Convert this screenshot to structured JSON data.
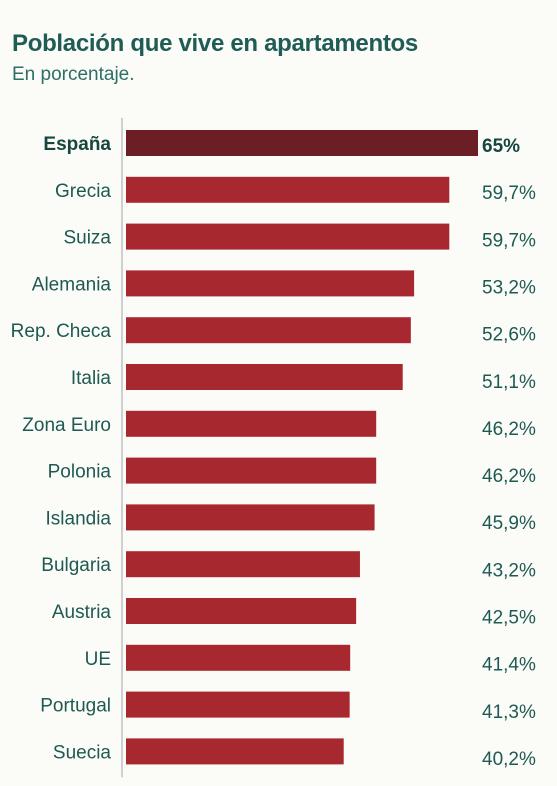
{
  "header": {
    "title": "Población que vive en apartamentos",
    "subtitle": "En porcentaje."
  },
  "colors": {
    "bar": "#a8282f",
    "highlight_bar": "#6b1f24",
    "text": "#1e5a52",
    "axis": "#cfcfcf"
  },
  "chart_data": {
    "type": "bar",
    "orientation": "horizontal",
    "title": "Población que vive en apartamentos",
    "subtitle": "En porcentaje.",
    "categories": [
      "España",
      "Grecia",
      "Suiza",
      "Alemania",
      "Rep. Checa",
      "Italia",
      "Zona Euro",
      "Polonia",
      "Islandia",
      "Bulgaria",
      "Austria",
      "UE",
      "Portugal",
      "Suecia"
    ],
    "values": [
      65,
      59.7,
      59.7,
      53.2,
      52.6,
      51.1,
      46.2,
      46.2,
      45.9,
      43.2,
      42.5,
      41.4,
      41.3,
      40.2
    ],
    "value_labels": [
      "65%",
      "59,7%",
      "59,7%",
      "53,2%",
      "52,6%",
      "51,1%",
      "46,2%",
      "46,2%",
      "45,9%",
      "43,2%",
      "42,5%",
      "41,4%",
      "41,3%",
      "40,2%"
    ],
    "highlight": "España",
    "xlim": [
      0,
      65
    ],
    "grid": false,
    "legend": "none"
  }
}
